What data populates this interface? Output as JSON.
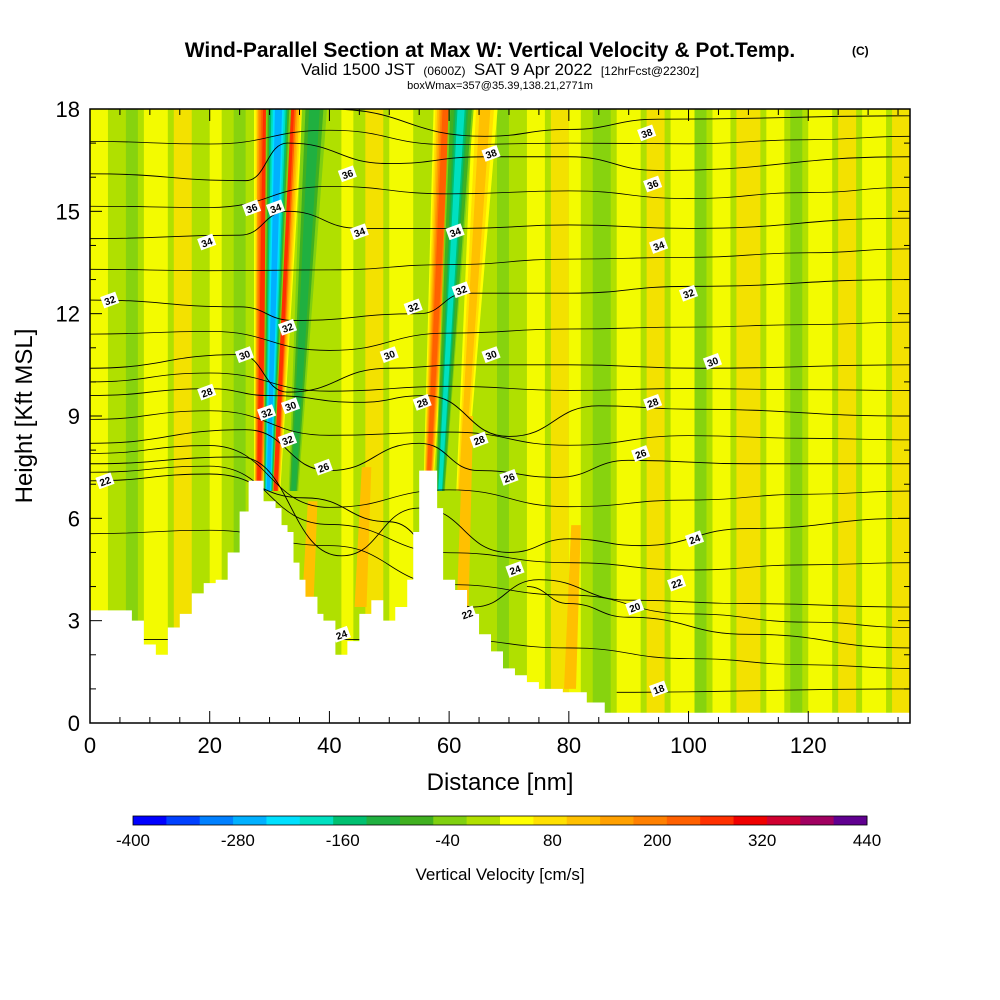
{
  "chart_data": {
    "type": "heatmap",
    "title": "Wind-Parallel Section at Max W: Vertical Velocity & Pot.Temp.",
    "title_mark": "(C)",
    "subtitle_parts": [
      "Valid 1500 JST",
      "(0600Z)",
      "SAT 9 Apr 2022",
      "[12hrFcst@2230z]"
    ],
    "subtitle2": "boxWmax=357@35.39,138.21,2771m",
    "xlabel": "Distance [nm]",
    "ylabel": "Height [Kft MSL]",
    "xlim": [
      0,
      137
    ],
    "ylim": [
      0,
      18
    ],
    "x_ticks": [
      0,
      20,
      40,
      60,
      80,
      100,
      120
    ],
    "x_ticklabels": [
      "0",
      "20",
      "40",
      "60",
      "80",
      "100",
      "120"
    ],
    "y_ticks": [
      0,
      3,
      6,
      9,
      12,
      15,
      18
    ],
    "y_ticklabels": [
      "0",
      "3",
      "6",
      "9",
      "12",
      "15",
      "18"
    ],
    "colorbar": {
      "title": "Vertical Velocity [cm/s]",
      "min": -400,
      "max": 440,
      "ticklabels": [
        "-400",
        "-280",
        "-160",
        "-40",
        "80",
        "200",
        "320",
        "440"
      ],
      "colors": [
        "#0000ff",
        "#0040ff",
        "#0080ff",
        "#00b0ff",
        "#00e0ff",
        "#00e0c0",
        "#00c070",
        "#20b040",
        "#40b020",
        "#80d010",
        "#b0e000",
        "#ffff00",
        "#ffe000",
        "#ffc000",
        "#ffa000",
        "#ff8000",
        "#ff6000",
        "#ff3000",
        "#f00000",
        "#d00030",
        "#a00060",
        "#600090"
      ]
    },
    "terrain": [
      [
        0,
        3.3
      ],
      [
        3,
        3.3
      ],
      [
        7,
        3.0
      ],
      [
        9,
        2.3
      ],
      [
        11,
        2.0
      ],
      [
        13,
        2.8
      ],
      [
        15,
        3.2
      ],
      [
        17,
        3.8
      ],
      [
        19,
        4.1
      ],
      [
        21,
        4.2
      ],
      [
        23,
        5.0
      ],
      [
        25,
        6.2
      ],
      [
        26.5,
        7.1
      ],
      [
        28,
        7.1
      ],
      [
        29,
        6.5
      ],
      [
        30,
        6.5
      ],
      [
        31,
        6.3
      ],
      [
        32,
        5.8
      ],
      [
        33,
        5.6
      ],
      [
        34,
        4.7
      ],
      [
        35,
        4.2
      ],
      [
        36,
        3.7
      ],
      [
        38,
        3.2
      ],
      [
        39,
        3.0
      ],
      [
        41,
        2.0
      ],
      [
        43,
        2.4
      ],
      [
        45,
        3.2
      ],
      [
        47,
        3.6
      ],
      [
        49,
        3.0
      ],
      [
        51,
        3.4
      ],
      [
        53,
        4.2
      ],
      [
        54,
        5.6
      ],
      [
        55,
        7.4
      ],
      [
        57,
        7.4
      ],
      [
        58,
        6.3
      ],
      [
        59,
        4.2
      ],
      [
        61,
        3.9
      ],
      [
        63,
        3.2
      ],
      [
        65,
        2.6
      ],
      [
        67,
        2.1
      ],
      [
        69,
        1.6
      ],
      [
        71,
        1.4
      ],
      [
        73,
        1.2
      ],
      [
        75,
        1.0
      ],
      [
        79,
        0.9
      ],
      [
        83,
        0.6
      ],
      [
        86,
        0.3
      ],
      [
        88,
        0.3
      ],
      [
        137,
        0.3
      ]
    ],
    "updrafts": [
      {
        "peak_x": 29.5,
        "base_x": 28.2,
        "top_y": 18,
        "w_max": 320
      },
      {
        "peak_x": 33.5,
        "base_x": 31.0,
        "top_y": 18,
        "w_max": 300
      },
      {
        "peak_x": 59.5,
        "base_x": 56.5,
        "top_y": 18,
        "w_max": 260
      },
      {
        "peak_x": 66,
        "base_x": 62,
        "top_y": 18,
        "w_max": 140
      }
    ],
    "downdrafts": [
      {
        "peak_x": 31.5,
        "base_x": 29.8,
        "top_y": 18,
        "w_min": -320
      },
      {
        "peak_x": 37.5,
        "base_x": 34,
        "top_y": 18,
        "w_min": -150
      },
      {
        "peak_x": 62,
        "base_x": 58.5,
        "top_y": 18,
        "w_min": -200
      }
    ],
    "isentropes": [
      {
        "theta": 18,
        "heights": [
          [
            88,
            0.9
          ],
          [
            137,
            1.0
          ]
        ]
      },
      {
        "theta": 20,
        "heights": [
          [
            73,
            4.0
          ],
          [
            80,
            3.5
          ],
          [
            90,
            3.1
          ],
          [
            110,
            2.6
          ],
          [
            137,
            2.2
          ]
        ]
      },
      {
        "theta": 22,
        "heights": [
          [
            0,
            7.1
          ],
          [
            20,
            7.3
          ],
          [
            36,
            6.6
          ],
          [
            50,
            5.9
          ],
          [
            64,
            3.4
          ],
          [
            75,
            4.2
          ],
          [
            90,
            3.6
          ],
          [
            110,
            3.5
          ],
          [
            137,
            3.4
          ]
        ]
      },
      {
        "theta": 24,
        "heights": [
          [
            0,
            7.6
          ],
          [
            25,
            7.8
          ],
          [
            42,
            4.9
          ],
          [
            55,
            6.3
          ],
          [
            70,
            5.0
          ],
          [
            80,
            5.4
          ],
          [
            92,
            5.2
          ],
          [
            110,
            5.7
          ],
          [
            137,
            6.0
          ]
        ]
      },
      {
        "theta": 26,
        "heights": [
          [
            0,
            8.2
          ],
          [
            26,
            8.6
          ],
          [
            40,
            7.4
          ],
          [
            55,
            8.2
          ],
          [
            65,
            7.4
          ],
          [
            78,
            7.2
          ],
          [
            90,
            7.7
          ],
          [
            110,
            7.6
          ],
          [
            137,
            7.6
          ]
        ]
      },
      {
        "theta": 28,
        "heights": [
          [
            0,
            9.6
          ],
          [
            20,
            9.8
          ],
          [
            30,
            9.6
          ],
          [
            45,
            9.4
          ],
          [
            56,
            9.6
          ],
          [
            70,
            8.4
          ],
          [
            85,
            9.3
          ],
          [
            100,
            9.2
          ],
          [
            137,
            9.0
          ]
        ]
      },
      {
        "theta": 30,
        "heights": [
          [
            0,
            10.4
          ],
          [
            25,
            10.8
          ],
          [
            33,
            9.7
          ],
          [
            50,
            10.4
          ],
          [
            62,
            10.5
          ],
          [
            80,
            10.5
          ],
          [
            102,
            10.4
          ],
          [
            137,
            10.5
          ]
        ]
      },
      {
        "theta": 32,
        "heights": [
          [
            0,
            12.4
          ],
          [
            25,
            12.2
          ],
          [
            34,
            11.8
          ],
          [
            55,
            12.0
          ],
          [
            63,
            12.6
          ],
          [
            80,
            12.6
          ],
          [
            100,
            12.8
          ],
          [
            137,
            13.0
          ]
        ]
      },
      {
        "theta": 34,
        "heights": [
          [
            0,
            14.2
          ],
          [
            25,
            14.3
          ],
          [
            33,
            15.0
          ],
          [
            45,
            14.5
          ],
          [
            62,
            14.5
          ],
          [
            80,
            14.6
          ],
          [
            100,
            14.5
          ],
          [
            137,
            14.8
          ]
        ]
      },
      {
        "theta": 36,
        "heights": [
          [
            0,
            16.1
          ],
          [
            26,
            15.9
          ],
          [
            33,
            17.0
          ],
          [
            50,
            16.4
          ],
          [
            66,
            16.6
          ],
          [
            80,
            16.6
          ],
          [
            95,
            16.2
          ],
          [
            137,
            16.6
          ]
        ]
      },
      {
        "theta": 38,
        "heights": [
          [
            40,
            18.0
          ],
          [
            66,
            17.2
          ],
          [
            80,
            17.4
          ],
          [
            95,
            17.7
          ],
          [
            137,
            17.8
          ]
        ]
      }
    ],
    "contour_labels": [
      {
        "text": "38",
        "x": 93,
        "y": 17.3
      },
      {
        "text": "38",
        "x": 67,
        "y": 16.7
      },
      {
        "text": "36",
        "x": 43,
        "y": 16.1
      },
      {
        "text": "36",
        "x": 94,
        "y": 15.8
      },
      {
        "text": "36",
        "x": 27,
        "y": 15.1
      },
      {
        "text": "34",
        "x": 31,
        "y": 15.1
      },
      {
        "text": "34",
        "x": 19.5,
        "y": 14.1
      },
      {
        "text": "34",
        "x": 45,
        "y": 14.4
      },
      {
        "text": "34",
        "x": 61,
        "y": 14.4
      },
      {
        "text": "34",
        "x": 95,
        "y": 14.0
      },
      {
        "text": "32",
        "x": 3.3,
        "y": 12.4
      },
      {
        "text": "32",
        "x": 62,
        "y": 12.7
      },
      {
        "text": "32",
        "x": 54,
        "y": 12.2
      },
      {
        "text": "32",
        "x": 100,
        "y": 12.6
      },
      {
        "text": "32",
        "x": 33,
        "y": 11.6
      },
      {
        "text": "30",
        "x": 25.8,
        "y": 10.8
      },
      {
        "text": "30",
        "x": 50,
        "y": 10.8
      },
      {
        "text": "30",
        "x": 67,
        "y": 10.8
      },
      {
        "text": "30",
        "x": 104,
        "y": 10.6
      },
      {
        "text": "28",
        "x": 19.5,
        "y": 9.7
      },
      {
        "text": "28",
        "x": 55.5,
        "y": 9.4
      },
      {
        "text": "28",
        "x": 94,
        "y": 9.4
      },
      {
        "text": "32",
        "x": 29.5,
        "y": 9.1
      },
      {
        "text": "30",
        "x": 33.5,
        "y": 9.3
      },
      {
        "text": "32",
        "x": 33,
        "y": 8.3
      },
      {
        "text": "28",
        "x": 65,
        "y": 8.3
      },
      {
        "text": "26",
        "x": 92,
        "y": 7.9
      },
      {
        "text": "26",
        "x": 39,
        "y": 7.5
      },
      {
        "text": "26",
        "x": 70,
        "y": 7.2
      },
      {
        "text": "22",
        "x": 2.5,
        "y": 7.1
      },
      {
        "text": "24",
        "x": 101,
        "y": 5.4
      },
      {
        "text": "24",
        "x": 71,
        "y": 4.5
      },
      {
        "text": "22",
        "x": 98,
        "y": 4.1
      },
      {
        "text": "20",
        "x": 91,
        "y": 3.4
      },
      {
        "text": "22",
        "x": 63,
        "y": 3.2
      },
      {
        "text": "24",
        "x": 42,
        "y": 2.6
      },
      {
        "text": "18",
        "x": 95,
        "y": 1.0
      }
    ]
  }
}
